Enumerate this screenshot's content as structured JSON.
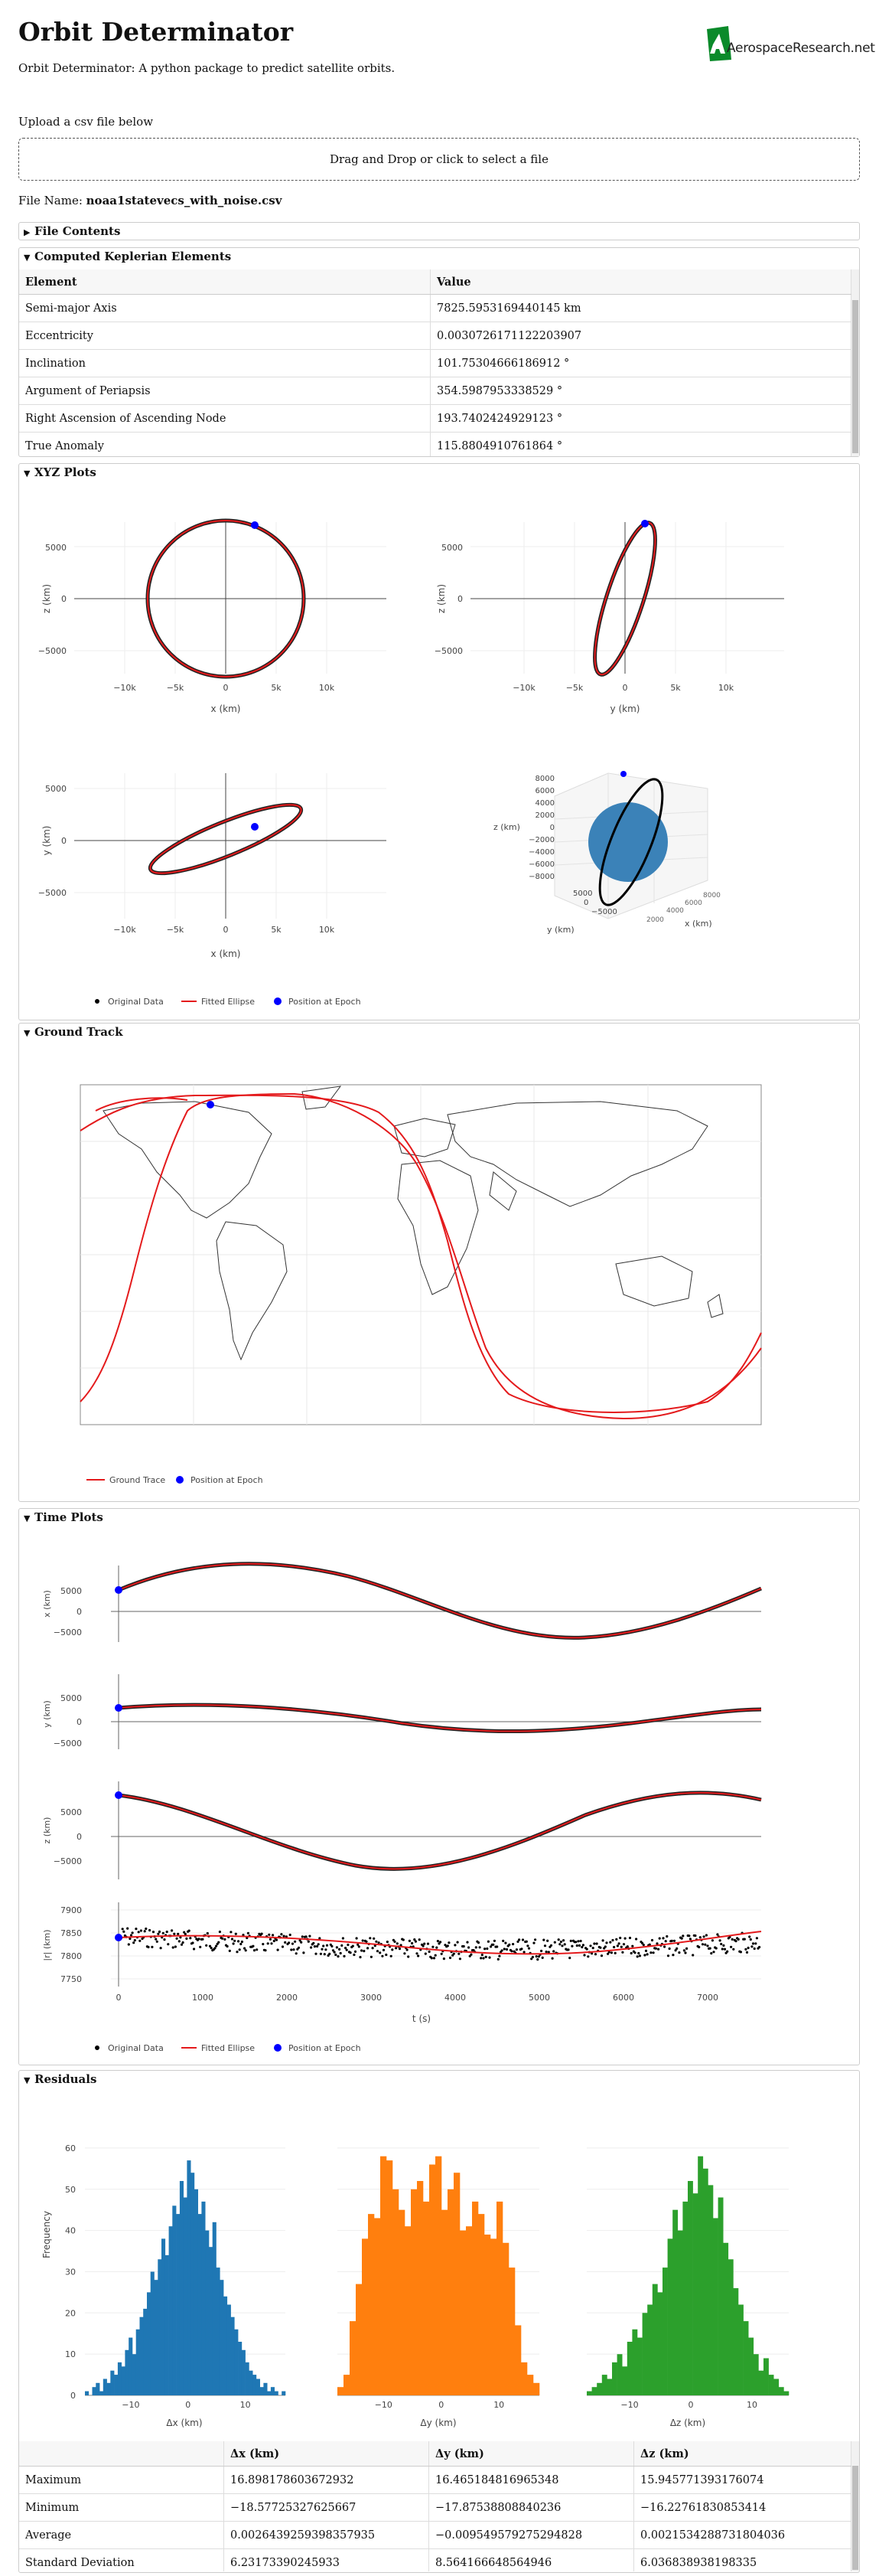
{
  "app": {
    "title": "Orbit Determinator",
    "subtitle": "Orbit Determinator: A python package to predict satellite orbits.",
    "logo_text": "AerospaceResearch.net"
  },
  "upload": {
    "label": "Upload a csv file below",
    "dropzone_text": "Drag and Drop or click to select a file",
    "file_name_label": "File Name:",
    "file_name": "noaa1statevecs_with_noise.csv"
  },
  "sections": {
    "file_contents": "File Contents",
    "keplerian": "Computed Keplerian Elements",
    "xyz": "XYZ Plots",
    "ground": "Ground Track",
    "time": "Time Plots",
    "residuals": "Residuals"
  },
  "keplerian_table": {
    "headers": [
      "Element",
      "Value"
    ],
    "rows": [
      [
        "Semi-major Axis",
        "7825.5953169440145 km"
      ],
      [
        "Eccentricity",
        "0.0030726171122203907"
      ],
      [
        "Inclination",
        "101.75304666186912 °"
      ],
      [
        "Argument of Periapsis",
        "354.5987953338529 °"
      ],
      [
        "Right Ascension of Ascending Node",
        "193.7402424929123 °"
      ],
      [
        "True Anomaly",
        "115.8804910761864 °"
      ]
    ]
  },
  "xyz_plots": {
    "xz": {
      "xlabel": "x (km)",
      "ylabel": "z (km)",
      "xticks": [
        "−10k",
        "−5k",
        "0",
        "5k",
        "10k"
      ],
      "yticks": [
        "5000",
        "0",
        "−5000"
      ]
    },
    "yz": {
      "xlabel": "y (km)",
      "ylabel": "z (km)",
      "xticks": [
        "−10k",
        "−5k",
        "0",
        "5k",
        "10k"
      ],
      "yticks": [
        "5000",
        "0",
        "−5000"
      ]
    },
    "xy": {
      "xlabel": "x (km)",
      "ylabel": "y (km)",
      "xticks": [
        "−10k",
        "−5k",
        "0",
        "5k",
        "10k"
      ],
      "yticks": [
        "5000",
        "0",
        "−5000"
      ]
    },
    "three_d": {
      "zlabel": "z (km)",
      "ylabel": "y (km)",
      "xlabel": "x (km)",
      "zticks": [
        "8000",
        "6000",
        "4000",
        "2000",
        "0",
        "−2000",
        "−4000",
        "−6000",
        "−8000"
      ],
      "yticks": [
        "5000",
        "0",
        "−5000"
      ]
    },
    "legend": [
      "Original Data",
      "Fitted Ellipse",
      "Position at Epoch"
    ]
  },
  "ground_track": {
    "legend": [
      "Ground Trace",
      "Position at Epoch"
    ]
  },
  "time_plots": {
    "xlabel": "t (s)",
    "xticks": [
      "0",
      "1000",
      "2000",
      "3000",
      "4000",
      "5000",
      "6000",
      "7000"
    ],
    "panels": [
      {
        "ylabel": "x (km)",
        "yticks": [
          "5000",
          "0",
          "−5000"
        ]
      },
      {
        "ylabel": "y (km)",
        "yticks": [
          "5000",
          "0",
          "−5000"
        ]
      },
      {
        "ylabel": "z (km)",
        "yticks": [
          "5000",
          "0",
          "−5000"
        ]
      },
      {
        "ylabel": "|r| (km)",
        "yticks": [
          "7900",
          "7850",
          "7800",
          "7750"
        ]
      }
    ],
    "legend": [
      "Original Data",
      "Fitted Ellipse",
      "Position at Epoch"
    ]
  },
  "colors": {
    "ellipse": "#e41a1c",
    "epoch": "#0000ff",
    "data": "#000000",
    "hist_x": "#1f77b4",
    "hist_y": "#ff7f0e",
    "hist_z": "#2ca02c",
    "earth": "#3b82b8"
  },
  "chart_data": [
    {
      "type": "bar",
      "title": "",
      "xlabel": "Δx (km)",
      "ylabel": "Frequency",
      "ylim": [
        0,
        65
      ],
      "xticks": [
        "−10",
        "0",
        "10"
      ],
      "yticks": [
        "0",
        "10",
        "20",
        "30",
        "40",
        "50",
        "60"
      ],
      "x_range": [
        -18,
        17
      ],
      "values": [
        1,
        0,
        2,
        3,
        1,
        4,
        3,
        6,
        5,
        8,
        7,
        11,
        14,
        10,
        16,
        19,
        21,
        25,
        30,
        28,
        33,
        38,
        34,
        41,
        46,
        44,
        52,
        48,
        57,
        54,
        50,
        44,
        47,
        40,
        36,
        42,
        31,
        28,
        24,
        22,
        19,
        16,
        13,
        11,
        8,
        6,
        5,
        4,
        2,
        3,
        1,
        2,
        1,
        0,
        1
      ]
    },
    {
      "type": "bar",
      "title": "",
      "xlabel": "Δy (km)",
      "ylabel": "",
      "ylim": [
        0,
        65
      ],
      "xticks": [
        "−10",
        "0",
        "10"
      ],
      "x_range": [
        -18,
        17
      ],
      "values": [
        2,
        5,
        18,
        27,
        38,
        44,
        43,
        58,
        57,
        50,
        45,
        41,
        50,
        52,
        47,
        56,
        58,
        45,
        50,
        54,
        40,
        41,
        47,
        44,
        39,
        38,
        47,
        37,
        31,
        17,
        8,
        5,
        3
      ]
    },
    {
      "type": "bar",
      "title": "",
      "xlabel": "Δz (km)",
      "ylabel": "",
      "ylim": [
        0,
        65
      ],
      "xticks": [
        "−10",
        "0",
        "10"
      ],
      "x_range": [
        -17,
        16
      ],
      "values": [
        1,
        2,
        3,
        5,
        4,
        8,
        10,
        7,
        13,
        16,
        14,
        20,
        22,
        27,
        25,
        31,
        38,
        45,
        40,
        47,
        52,
        49,
        58,
        55,
        51,
        43,
        48,
        37,
        33,
        26,
        22,
        18,
        14,
        10,
        6,
        9,
        5,
        4,
        2,
        1
      ]
    }
  ],
  "residual_table": {
    "headers": [
      "",
      "Δx (km)",
      "Δy (km)",
      "Δz (km)"
    ],
    "rows": [
      [
        "Maximum",
        "16.898178603672932",
        "16.465184816965348",
        "15.945771393176074"
      ],
      [
        "Minimum",
        "−18.57725327625667",
        "−17.87538808840236",
        "−16.22761830853414"
      ],
      [
        "Average",
        "0.0026439259398357935",
        "−0.009549579275294828",
        "0.0021534288731804036"
      ],
      [
        "Standard Deviation",
        "6.23173390245933",
        "8.564166648564946",
        "6.036838938198335"
      ]
    ]
  }
}
